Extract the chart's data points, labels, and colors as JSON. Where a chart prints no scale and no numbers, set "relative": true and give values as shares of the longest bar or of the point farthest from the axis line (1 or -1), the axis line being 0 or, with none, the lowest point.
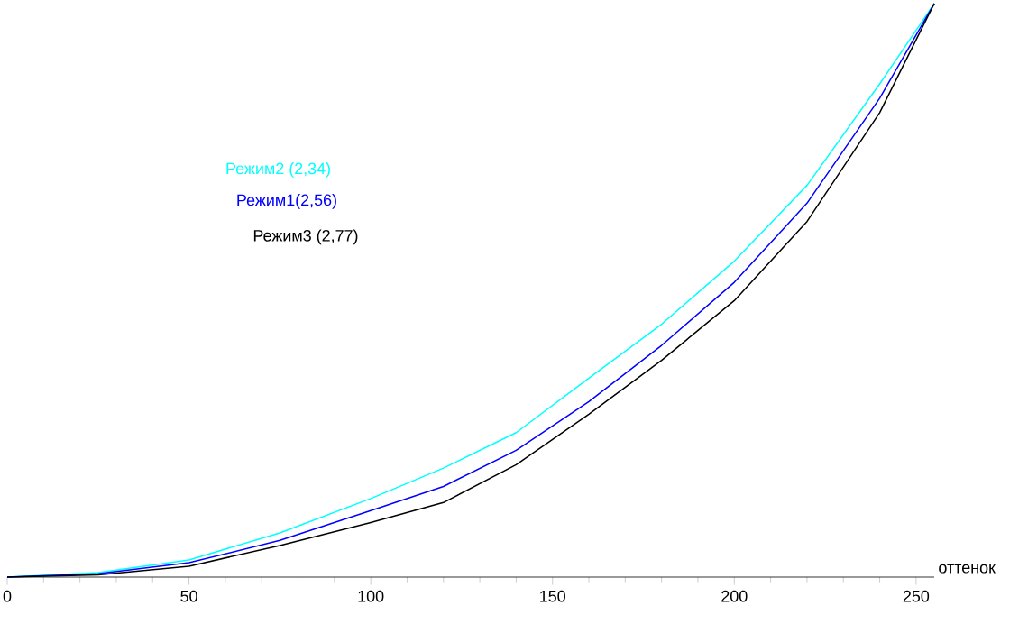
{
  "chart_data": {
    "type": "line",
    "relative": true,
    "xlabel": "оттенок",
    "xlim": [
      0,
      255
    ],
    "xticks": [
      0,
      50,
      100,
      150,
      200,
      250
    ],
    "marker": "none",
    "x": [
      0,
      25,
      50,
      75,
      100,
      120,
      140,
      160,
      180,
      200,
      220,
      240,
      255
    ],
    "series": [
      {
        "name": "Режим2 (2,34)",
        "color": "#00ffff",
        "values": [
          0,
          0.008,
          0.03,
          0.077,
          0.137,
          0.19,
          0.252,
          0.347,
          0.441,
          0.551,
          0.683,
          0.86,
          1
        ]
      },
      {
        "name": "Режим1(2,56)",
        "color": "#0000ff",
        "values": [
          0,
          0.006,
          0.025,
          0.064,
          0.116,
          0.158,
          0.221,
          0.306,
          0.404,
          0.514,
          0.652,
          0.835,
          1
        ]
      },
      {
        "name": "Режим3 (2,77)",
        "color": "#000000",
        "values": [
          0,
          0.004,
          0.019,
          0.055,
          0.095,
          0.13,
          0.196,
          0.284,
          0.378,
          0.482,
          0.62,
          0.81,
          1
        ]
      }
    ]
  }
}
